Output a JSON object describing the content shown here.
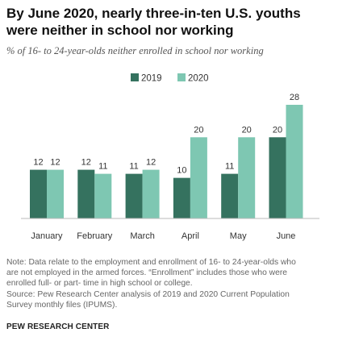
{
  "title": "By June 2020, nearly three-in-ten U.S. youths were neither in school nor working",
  "subtitle": "% of 16- to 24-year-olds neither enrolled in school nor working",
  "colors": {
    "2019": "#35725f",
    "2020": "#7ec7b2"
  },
  "chart_data": {
    "type": "bar",
    "categories": [
      "January",
      "February",
      "March",
      "April",
      "May",
      "June"
    ],
    "series": [
      {
        "name": "2019",
        "values": [
          12,
          12,
          11,
          10,
          11,
          20
        ]
      },
      {
        "name": "2020",
        "values": [
          12,
          11,
          12,
          20,
          20,
          28
        ]
      }
    ],
    "title": "",
    "xlabel": "",
    "ylabel": "",
    "ylim": [
      0,
      30
    ],
    "grid": false,
    "legend": "top-center"
  },
  "note": {
    "lines": [
      "Note: Data relate to the employment and enrollment of 16- to 24-year-olds who",
      "are not employed in the armed forces. “Enrollment” includes those who were",
      "enrolled full- or part- time in high school or college.",
      "Source: Pew Research Center analysis of 2019 and 2020 Current Population",
      "Survey monthly files (IPUMS)."
    ]
  },
  "footer": "PEW RESEARCH CENTER"
}
